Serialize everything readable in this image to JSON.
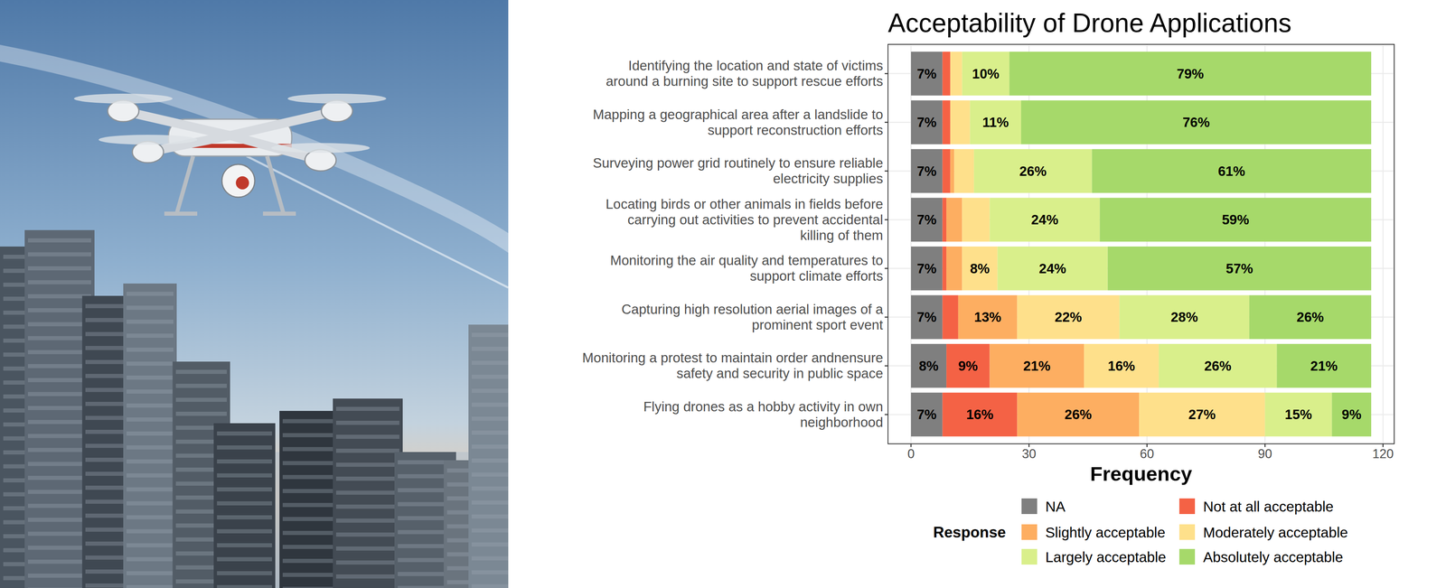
{
  "chart_data": {
    "type": "bar",
    "orientation": "horizontal",
    "stacked": true,
    "title": "Acceptability of Drone Applications",
    "x_label": "Frequency",
    "legend_title": "Response",
    "legend": "bottom",
    "grid": true,
    "data_labels": true,
    "xlim": [
      -5.85,
      122.85
    ],
    "xticks": [
      0,
      30,
      60,
      90,
      120
    ],
    "categories": [
      "Identifying the location and state of victims\naround a burning site to support rescue efforts",
      "Mapping a geographical area after a landslide to\nsupport reconstruction efforts",
      "Surveying power grid routinely to ensure reliable\nelectricity supplies",
      "Locating birds or other animals in fields before\ncarrying out activities to prevent accidental\nkilling of them",
      "Monitoring the air quality and temperatures to\nsupport climate efforts",
      "Capturing high resolution aerial images of a\nprominent sport event",
      "Monitoring a protest to maintain order andnensure\nsafety and security in public space",
      "Flying drones as a hobby activity in own\nneighborhood"
    ],
    "series": [
      {
        "name": "NA",
        "color": "#7f7f7f",
        "values": [
          8,
          8,
          8,
          8,
          8,
          8,
          9,
          8
        ],
        "percent_labels": [
          "7%",
          "7%",
          "7%",
          "7%",
          "7%",
          "7%",
          "8%",
          "7%"
        ]
      },
      {
        "name": "Not at all acceptable",
        "color": "#f46245",
        "values": [
          2,
          2,
          2,
          1,
          1,
          4,
          11,
          19
        ],
        "percent_labels": [
          null,
          null,
          null,
          null,
          null,
          null,
          "9%",
          "16%"
        ]
      },
      {
        "name": "Slightly acceptable",
        "color": "#fdae61",
        "values": [
          0,
          0,
          1,
          4,
          4,
          15,
          24,
          31
        ],
        "percent_labels": [
          null,
          null,
          null,
          null,
          null,
          "13%",
          "21%",
          "26%"
        ]
      },
      {
        "name": "Moderately acceptable",
        "color": "#fee08b",
        "values": [
          3,
          5,
          5,
          7,
          9,
          26,
          19,
          32
        ],
        "percent_labels": [
          null,
          null,
          null,
          null,
          "8%",
          "22%",
          "16%",
          "27%"
        ]
      },
      {
        "name": "Largely acceptable",
        "color": "#d9ef8b",
        "values": [
          12,
          13,
          30,
          28,
          28,
          33,
          30,
          17
        ],
        "percent_labels": [
          "10%",
          "11%",
          "26%",
          "24%",
          "24%",
          "28%",
          "26%",
          "15%"
        ]
      },
      {
        "name": "Absolutely acceptable",
        "color": "#a6d96a",
        "values": [
          92,
          89,
          71,
          69,
          67,
          31,
          24,
          10
        ],
        "percent_labels": [
          "79%",
          "76%",
          "61%",
          "59%",
          "57%",
          "26%",
          "21%",
          "9%"
        ]
      }
    ]
  }
}
